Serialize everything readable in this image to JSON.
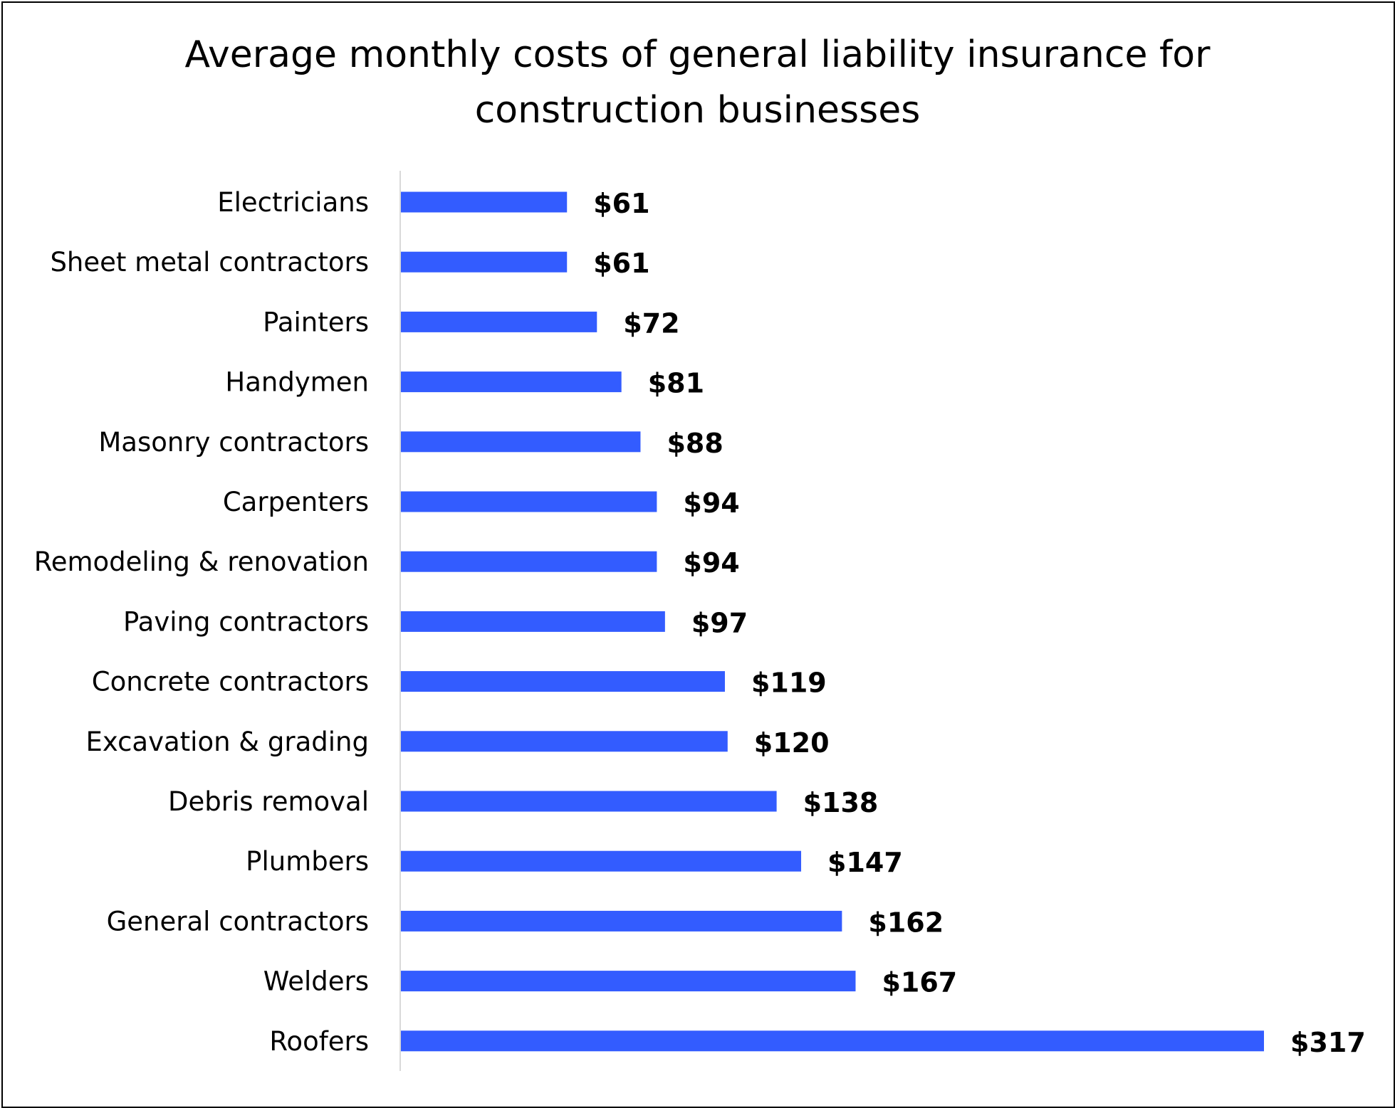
{
  "chart_data": {
    "type": "bar",
    "orientation": "horizontal",
    "title": "Average monthly costs of general liability insurance for construction businesses",
    "xlabel": "",
    "ylabel": "",
    "categories": [
      "Electricians",
      "Sheet metal contractors",
      "Painters",
      "Handymen",
      "Masonry contractors",
      "Carpenters",
      "Remodeling & renovation",
      "Paving contractors",
      "Concrete contractors",
      "Excavation & grading",
      "Debris removal",
      "Plumbers",
      "General contractors",
      "Welders",
      "Roofers"
    ],
    "values": [
      61,
      61,
      72,
      81,
      88,
      94,
      94,
      97,
      119,
      120,
      138,
      147,
      162,
      167,
      317
    ],
    "value_labels": [
      "$61",
      "$61",
      "$72",
      "$81",
      "$88",
      "$94",
      "$94",
      "$97",
      "$119",
      "$120",
      "$138",
      "$147",
      "$162",
      "$167",
      "$317"
    ],
    "xlim": [
      0,
      317
    ],
    "grid": false,
    "legend": "none",
    "bar_color": "#335CFF",
    "axis_color": "#D9D9D9"
  }
}
